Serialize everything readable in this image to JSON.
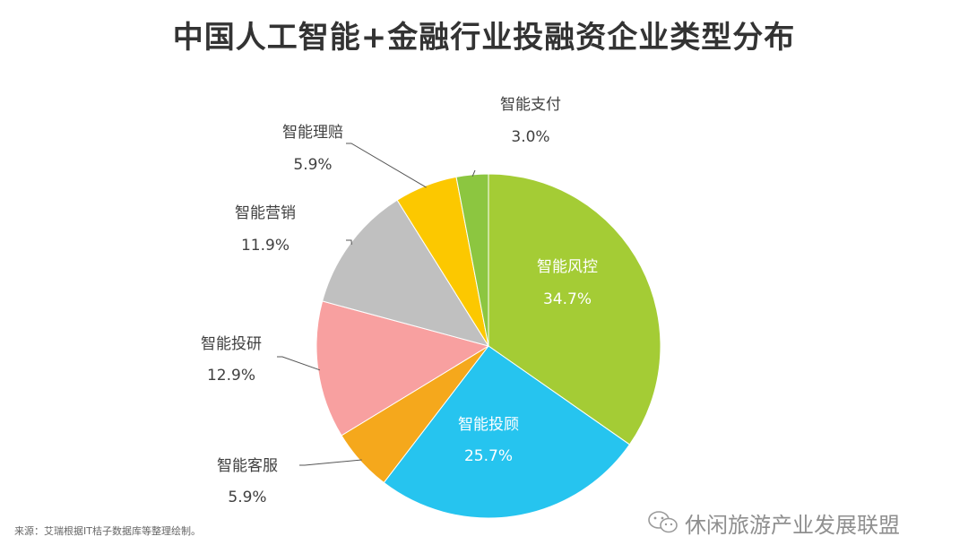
{
  "title": "中国人工智能+金融行业投融资企业类型分布",
  "source": "来源：艾瑞根据IT桔子数据库等整理绘制。",
  "watermark": "休闲旅游产业发展联盟",
  "chart_data": {
    "type": "pie",
    "title": "中国人工智能+金融行业投融资企业类型分布",
    "slices": [
      {
        "label": "智能风控",
        "value": 34.7,
        "value_label": "34.7%",
        "color": "#a4cc35"
      },
      {
        "label": "智能投顾",
        "value": 25.7,
        "value_label": "25.7%",
        "color": "#26c4ef"
      },
      {
        "label": "智能客服",
        "value": 5.9,
        "value_label": "5.9%",
        "color": "#f5a81c"
      },
      {
        "label": "智能投研",
        "value": 12.9,
        "value_label": "12.9%",
        "color": "#f8a0a0"
      },
      {
        "label": "智能营销",
        "value": 11.9,
        "value_label": "11.9%",
        "color": "#c0c0c0"
      },
      {
        "label": "智能理赔",
        "value": 5.9,
        "value_label": "5.9%",
        "color": "#fcc800"
      },
      {
        "label": "智能支付",
        "value": 3.0,
        "value_label": "3.0%",
        "color": "#8cc640"
      }
    ],
    "label_placement": [
      "inside",
      "inside",
      "outside",
      "outside",
      "outside",
      "outside",
      "outside"
    ]
  }
}
